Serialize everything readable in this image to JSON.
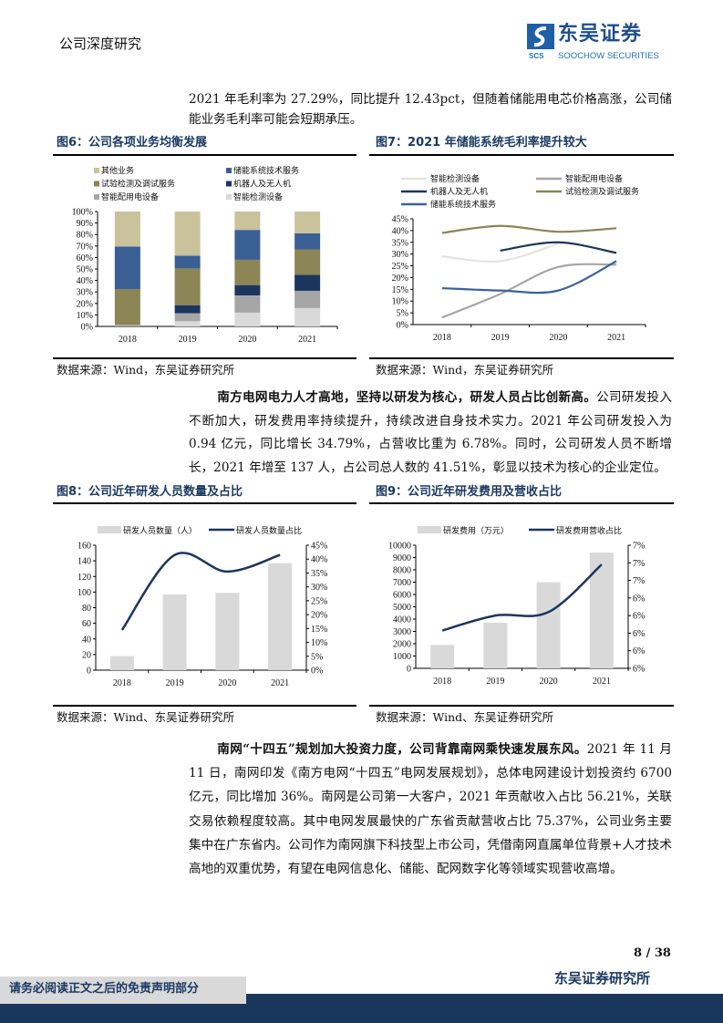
{
  "header": {
    "section": "公司深度研究",
    "logo_cn": "东吴证券",
    "logo_en": "SOOCHOW SECURITIES",
    "logo_mark": "SCS"
  },
  "para1": "2021 年毛利率为 27.29%，同比提升 12.43pct，但随着储能用电芯价格高涨，公司储能业务毛利率可能会短期承压。",
  "para2": {
    "bold": "南方电网电力人才高地，坚持以研发为核心，研发人员占比创新高。",
    "text": "公司研发投入不断加大，研发费用率持续提升，持续改进自身技术实力。2021 年公司研发投入为 0.94 亿元，同比增长 34.79%，占营收比重为 6.78%。同时，公司研发人员不断增长，2021 年增至 137 人，占公司总人数的 41.51%，彰显以技术为核心的企业定位。"
  },
  "para3": {
    "bold": "南网“十四五”规划加大投资力度，公司背靠南网乘快速发展东风。",
    "text": "2021 年 11 月 11 日，南网印发《南方电网“十四五”电网发展规划》，总体电网建设计划投资约 6700 亿元，同比增加 36%。南网是公司第一大客户，2021 年贡献收入占比 56.21%，关联交易依赖程度较高。其中电网发展最快的广东省贡献营收占比 75.37%，公司业务主要集中在广东省内。公司作为南网旗下科技型上市公司，凭借南网直属单位背景+人才技术高地的双重优势，有望在电网信息化、储能、配网数字化等领域实现营收高增。"
  },
  "figures": {
    "fig6": {
      "title": "图6：公司各项业务均衡发展",
      "source": "数据来源：Wind，东吴证券研究所"
    },
    "fig7": {
      "title": "图7：2021 年储能系统毛利率提升较大",
      "source": "数据来源：Wind，东吴证券研究所"
    },
    "fig8": {
      "title": "图8：公司近年研发人员数量及占比",
      "source": "数据来源：Wind、东吴证券研究所"
    },
    "fig9": {
      "title": "图9：公司近年研发费用及营收占比",
      "source": "数据来源：Wind、东吴证券研究所"
    }
  },
  "chart_data": [
    {
      "id": "fig6",
      "type": "bar",
      "stacked": true,
      "categories": [
        "2018",
        "2019",
        "2020",
        "2021"
      ],
      "ylim": [
        0,
        100
      ],
      "yticks": [
        "0%",
        "10%",
        "20%",
        "30%",
        "40%",
        "50%",
        "60%",
        "70%",
        "80%",
        "90%",
        "100%"
      ],
      "legend": "top",
      "series": [
        {
          "name": "智能检测设备",
          "color": "#d9d9d9",
          "values": [
            0,
            4.5,
            12,
            16
          ]
        },
        {
          "name": "智能配用电设备",
          "color": "#a6a6a6",
          "values": [
            1.5,
            7,
            15,
            15
          ]
        },
        {
          "name": "机器人及无人机",
          "color": "#1b365d",
          "values": [
            0,
            7,
            9,
            14
          ]
        },
        {
          "name": "试验检测及调试服务",
          "color": "#8c8555",
          "values": [
            31,
            32,
            22,
            22
          ]
        },
        {
          "name": "储能系统技术服务",
          "color": "#3a5f94",
          "values": [
            37,
            11,
            26,
            14
          ]
        },
        {
          "name": "其他业务",
          "color": "#c9c29b",
          "values": [
            30.5,
            38.5,
            16,
            19
          ]
        }
      ],
      "legend_order": [
        "其他业务",
        "储能系统技术服务",
        "试验检测及调试服务",
        "机器人及无人机",
        "智能配用电设备",
        "智能检测设备"
      ]
    },
    {
      "id": "fig7",
      "type": "line",
      "categories": [
        "2018",
        "2019",
        "2020",
        "2021"
      ],
      "ylim": [
        0,
        45
      ],
      "yticks": [
        "0%",
        "5%",
        "10%",
        "15%",
        "20%",
        "25%",
        "30%",
        "35%",
        "40%",
        "45%"
      ],
      "legend": "top",
      "series": [
        {
          "name": "智能检测设备",
          "color": "#e3e3e3",
          "values": [
            29,
            27,
            34.5,
            null
          ]
        },
        {
          "name": "智能配用电设备",
          "color": "#a6a6a6",
          "values": [
            3,
            13,
            24.5,
            25.5
          ]
        },
        {
          "name": "机器人及无人机",
          "color": "#1b365d",
          "values": [
            null,
            31.5,
            35,
            30.5
          ]
        },
        {
          "name": "试验检测及调试服务",
          "color": "#8c8555",
          "values": [
            39,
            42,
            39.5,
            41
          ]
        },
        {
          "name": "储能系统技术服务",
          "color": "#3a6399",
          "values": [
            15.5,
            14.5,
            14.5,
            27
          ]
        }
      ]
    },
    {
      "id": "fig8",
      "type": "bar+line",
      "categories": [
        "2018",
        "2019",
        "2020",
        "2021"
      ],
      "legend": "top",
      "ylim": [
        0,
        160
      ],
      "yticks": [
        "0",
        "20",
        "40",
        "60",
        "80",
        "100",
        "120",
        "140",
        "160"
      ],
      "y2lim": [
        0,
        45
      ],
      "y2ticks": [
        "0%",
        "5%",
        "10%",
        "15%",
        "20%",
        "25%",
        "30%",
        "35%",
        "40%",
        "45%"
      ],
      "bar": {
        "name": "研发人员数量（人）",
        "color": "#d9d9d9",
        "values": [
          18,
          97,
          99,
          137
        ]
      },
      "line": {
        "name": "研发人员数量占比",
        "color": "#1b365d",
        "values": [
          14.5,
          41.5,
          35.5,
          41.51
        ]
      }
    },
    {
      "id": "fig9",
      "type": "bar+line",
      "categories": [
        "2018",
        "2019",
        "2020",
        "2021"
      ],
      "legend": "top",
      "ylim": [
        0,
        10000
      ],
      "yticks": [
        "0",
        "1000",
        "2000",
        "3000",
        "4000",
        "5000",
        "6000",
        "7000",
        "8000",
        "9000",
        "10000"
      ],
      "y2lim": [
        5.6,
        7.0
      ],
      "y2ticks": [
        "6%",
        "6%",
        "6%",
        "6%",
        "6%",
        "7%",
        "7%",
        "7%"
      ],
      "bar": {
        "name": "研发费用（万元）",
        "color": "#d9d9d9",
        "values": [
          1900,
          3700,
          7000,
          9400
        ]
      },
      "line": {
        "name": "研发费用营收占比",
        "color": "#1b365d",
        "values": [
          6.03,
          6.2,
          6.24,
          6.78
        ]
      }
    }
  ],
  "footer": {
    "page": "8 / 38",
    "brand": "东吴证券研究所",
    "disclaimer": "请务必阅读正文之后的免责声明部分"
  }
}
